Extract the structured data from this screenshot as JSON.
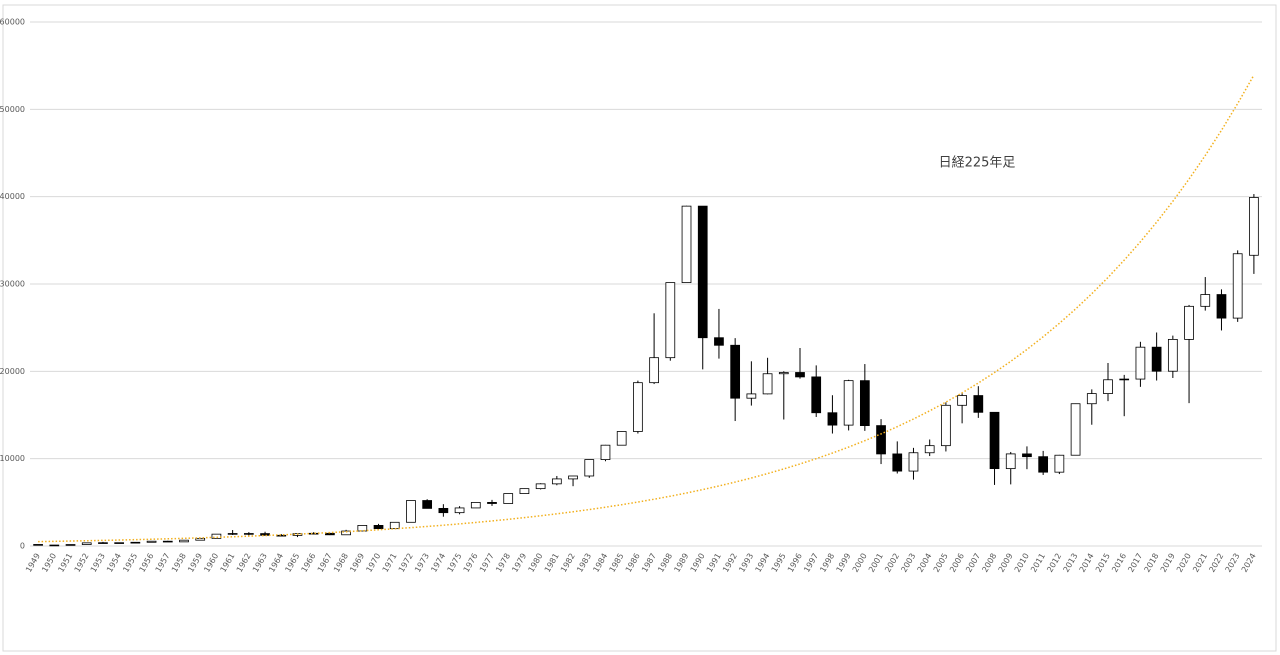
{
  "chart_data": {
    "type": "candlestick",
    "title": "日経225年足",
    "categories": [
      "1949",
      "1950",
      "1951",
      "1952",
      "1953",
      "1954",
      "1955",
      "1956",
      "1957",
      "1958",
      "1959",
      "1960",
      "1961",
      "1962",
      "1963",
      "1964",
      "1965",
      "1966",
      "1967",
      "1968",
      "1969",
      "1970",
      "1971",
      "1972",
      "1973",
      "1974",
      "1975",
      "1976",
      "1977",
      "1978",
      "1979",
      "1980",
      "1981",
      "1982",
      "1983",
      "1984",
      "1985",
      "1986",
      "1987",
      "1988",
      "1989",
      "1990",
      "1991",
      "1992",
      "1993",
      "1994",
      "1995",
      "1996",
      "1997",
      "1998",
      "1999",
      "2000",
      "2001",
      "2002",
      "2003",
      "2004",
      "2005",
      "2006",
      "2007",
      "2008",
      "2009",
      "2010",
      "2011",
      "2012",
      "2013",
      "2014",
      "2015",
      "2016",
      "2017",
      "2018",
      "2019",
      "2020",
      "2021",
      "2022",
      "2023",
      "2024"
    ],
    "open": [
      176,
      109,
      101,
      166,
      362,
      377,
      356,
      425,
      549,
      474,
      666,
      874,
      1356,
      1430,
      1420,
      1225,
      1216,
      1417,
      1452,
      1283,
      1714,
      2358,
      1987,
      2714,
      5208,
      4306,
      3817,
      4359,
      4990,
      4866,
      6002,
      6569,
      7116,
      7682,
      8017,
      9894,
      11543,
      13113,
      18701,
      21564,
      30159,
      38916,
      23849,
      22984,
      16925,
      17417,
      19723,
      19868,
      19361,
      15259,
      13842,
      18934,
      13786,
      10543,
      8579,
      10677,
      11489,
      16111,
      17226,
      15308,
      8860,
      10546,
      10229,
      8455,
      10395,
      16291,
      17451,
      19034,
      19114,
      22765,
      20015,
      23657,
      27444,
      28792,
      26095,
      33288
    ],
    "high": [
      176,
      114,
      167,
      362,
      474,
      380,
      425,
      549,
      596,
      667,
      874,
      1356,
      1830,
      1590,
      1634,
      1369,
      1418,
      1588,
      1506,
      1851,
      2358,
      2534,
      2740,
      5207,
      5359,
      4788,
      4564,
      4990,
      5287,
      6002,
      6590,
      7188,
      8019,
      8026,
      9893,
      11577,
      13129,
      18936,
      26646,
      30159,
      38957,
      38713,
      27146,
      23801,
      21148,
      21552,
      20011,
      22666,
      20681,
      17264,
      19036,
      20833,
      14529,
      11979,
      11238,
      12195,
      16445,
      17563,
      18300,
      15156,
      10767,
      11408,
      10891,
      10433,
      16320,
      17935,
      20952,
      19592,
      23382,
      24448,
      24091,
      27602,
      30796,
      29388,
      33853,
      40300
    ],
    "low": [
      85,
      85,
      98,
      161,
      295,
      315,
      348,
      425,
      471,
      474,
      666,
      874,
      1260,
      1216,
      1200,
      1202,
      1020,
      1364,
      1250,
      1267,
      1714,
      1929,
      1981,
      2712,
      4306,
      3355,
      3628,
      4358,
      4598,
      4866,
      5994,
      6475,
      6957,
      6849,
      7803,
      9703,
      11545,
      12881,
      18544,
      21217,
      30159,
      20221,
      21456,
      14309,
      16078,
      17369,
      14485,
      19161,
      14775,
      12879,
      13232,
      13182,
      9382,
      8303,
      7603,
      10299,
      10825,
      14046,
      14669,
      6994,
      7054,
      8796,
      8135,
      8238,
      10395,
      13885,
      16593,
      14864,
      18224,
      18948,
      19241,
      16358,
      26954,
      24681,
      25662,
      31156
    ],
    "close": [
      109,
      101,
      166,
      362,
      377,
      356,
      425,
      549,
      474,
      666,
      874,
      1356,
      1430,
      1420,
      1225,
      1216,
      1417,
      1452,
      1283,
      1714,
      2358,
      1987,
      2714,
      5208,
      4306,
      3817,
      4359,
      4990,
      4866,
      6002,
      6569,
      7116,
      7682,
      8017,
      9894,
      11543,
      13113,
      18701,
      21564,
      30159,
      38916,
      23849,
      22984,
      16925,
      17417,
      19723,
      19868,
      19361,
      15259,
      13842,
      18934,
      13786,
      10543,
      8579,
      10677,
      11489,
      16111,
      17226,
      15308,
      8860,
      10546,
      10229,
      8455,
      10395,
      16291,
      17451,
      19034,
      19114,
      22765,
      20015,
      23657,
      27444,
      28792,
      26095,
      33464,
      39910
    ],
    "up_color": "#ffffff",
    "down_color": "#000000",
    "trendline": {
      "color": "#f2b01e",
      "values": [
        500,
        532,
        566,
        603,
        642,
        683,
        727,
        774,
        824,
        877,
        933,
        993,
        1057,
        1125,
        1198,
        1275,
        1357,
        1445,
        1538,
        1637,
        1742,
        1854,
        1974,
        2101,
        2236,
        2380,
        2533,
        2697,
        2870,
        3055,
        3252,
        3461,
        3684,
        3921,
        4174,
        4443,
        4729,
        5033,
        5357,
        5702,
        6069,
        6460,
        6876,
        7319,
        7790,
        8292,
        8826,
        9394,
        9999,
        10643,
        11328,
        12058,
        12834,
        13661,
        14541,
        15477,
        16474,
        17535,
        18664,
        19866,
        21146,
        22507,
        23957,
        25500,
        27142,
        28890,
        30750,
        32731,
        34839,
        37082,
        39470,
        42012,
        44718,
        47598,
        50663,
        53926
      ]
    },
    "ylim": [
      0,
      60000
    ],
    "yticks": [
      0,
      10000,
      20000,
      30000,
      40000,
      50000,
      60000
    ],
    "grid": true
  }
}
